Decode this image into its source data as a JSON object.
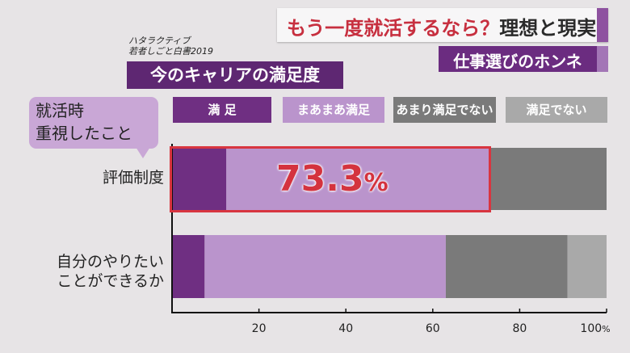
{
  "header": {
    "title_main": "もう一度就活するなら",
    "title_q": "？",
    "title_rest": "理想と現実",
    "subtitle": "仕事選びのホンネ",
    "accent_color": "#8e52a0"
  },
  "source_line1": "ハタラクティブ",
  "source_line2": "若者しごと白書2019",
  "chart_title": "今のキャリアの満足度",
  "bubble": {
    "line1": "就活時",
    "line2": "重視したこと"
  },
  "highlight": {
    "value": "73.3",
    "unit": "%"
  },
  "chart_data": {
    "type": "bar",
    "orientation": "horizontal",
    "stacked": true,
    "title": "今のキャリアの満足度",
    "categories": [
      "評価制度",
      "自分のやりたいことができるか"
    ],
    "category_lines": [
      [
        "評価制度"
      ],
      [
        "自分のやりたい",
        "ことができるか"
      ]
    ],
    "series": [
      {
        "name": "満 足",
        "color": "#6f2f82",
        "text_color": "#ffffff",
        "values": [
          12.5,
          7.5
        ]
      },
      {
        "name": "まあまあ満足",
        "color": "#ba94cc",
        "text_color": "#ffffff",
        "values": [
          60.8,
          55.5
        ]
      },
      {
        "name": "あまり満足でない",
        "color": "#7a7a7a",
        "text_color": "#ffffff",
        "values": [
          26.7,
          28.0
        ]
      },
      {
        "name": "満足でない",
        "color": "#a9a9a9",
        "text_color": "#ffffff",
        "values": [
          0.0,
          9.0
        ]
      }
    ],
    "xlim": [
      0,
      100
    ],
    "xticks": [
      20,
      40,
      60,
      80,
      100
    ],
    "xtick_labels": [
      "20",
      "40",
      "60",
      "80",
      "100"
    ],
    "xtick_suffix": "%",
    "legend_position": "top",
    "grid": false
  }
}
